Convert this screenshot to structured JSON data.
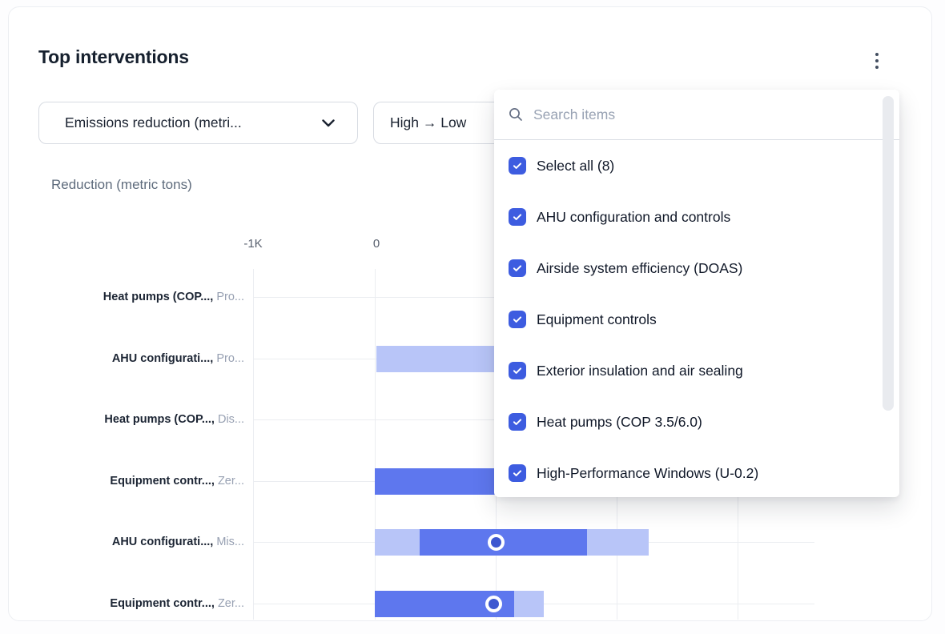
{
  "card": {
    "title": "Top interventions"
  },
  "filters": {
    "metric_selected": "Emissions reduction (metri...",
    "sort_selected": "High → Low"
  },
  "chart": {
    "axis_title": "Reduction (metric tons)"
  },
  "dropdown": {
    "search_placeholder": "Search items",
    "items": [
      {
        "label": "Select all (8)",
        "checked": true
      },
      {
        "label": "AHU configuration and controls",
        "checked": true
      },
      {
        "label": "Airside system efficiency (DOAS)",
        "checked": true
      },
      {
        "label": "Equipment controls",
        "checked": true
      },
      {
        "label": "Exterior insulation and air sealing",
        "checked": true
      },
      {
        "label": "Heat pumps (COP 3.5/6.0)",
        "checked": true
      },
      {
        "label": "High-Performance Windows (U-0.2)",
        "checked": true
      }
    ]
  },
  "colors": {
    "bar_solid": "#5E77EE",
    "bar_light": "#B8C5F8",
    "marker_fill": "#3D57D0",
    "checkbox_blue": "#3D5CE0",
    "gridline": "#EBEDF1"
  },
  "chart_data": {
    "type": "range-bar",
    "orientation": "horizontal",
    "title": "Reduction (metric tons)",
    "unit": "thousand metric tons",
    "x_ticks_visible": [
      "-1K",
      "0"
    ],
    "xlim": [
      -1,
      3.6
    ],
    "grid": true,
    "rows": [
      {
        "label_bold": "Heat pumps (COP...,",
        "label_muted": "Pro...",
        "segments": [],
        "marker": null
      },
      {
        "label_bold": "AHU configurati...,",
        "label_muted": "Pro...",
        "segments": [
          {
            "from": 0.01,
            "to": 0.99,
            "tone": "light"
          }
        ],
        "marker": null,
        "clipped_by_dropdown": true
      },
      {
        "label_bold": "Heat pumps (COP...,",
        "label_muted": "Dis...",
        "segments": [],
        "marker": null
      },
      {
        "label_bold": "Equipment contr...,",
        "label_muted": "Zer...",
        "segments": [
          {
            "from": 0,
            "to": 0.99,
            "tone": "solid"
          }
        ],
        "marker": null,
        "clipped_by_dropdown": true
      },
      {
        "label_bold": "AHU configurati...,",
        "label_muted": "Mis...",
        "segments": [
          {
            "from": 0,
            "to": 0.37,
            "tone": "light"
          },
          {
            "from": 0.37,
            "to": 1.75,
            "tone": "solid"
          },
          {
            "from": 1.75,
            "to": 2.26,
            "tone": "light"
          }
        ],
        "marker": 1.0
      },
      {
        "label_bold": "Equipment contr...,",
        "label_muted": "Zer...",
        "segments": [
          {
            "from": 0,
            "to": 1.15,
            "tone": "solid"
          },
          {
            "from": 1.15,
            "to": 1.39,
            "tone": "light"
          }
        ],
        "marker": 0.98
      }
    ]
  }
}
